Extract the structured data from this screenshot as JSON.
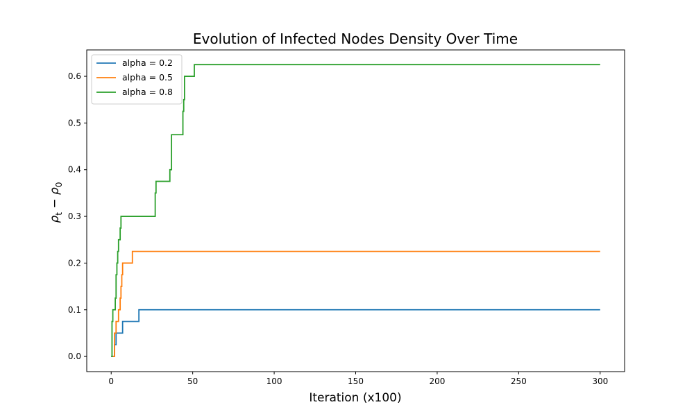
{
  "chart_data": {
    "type": "line",
    "title": "Evolution of Infected Nodes Density Over Time",
    "xlabel": "Iteration (x100)",
    "ylabel": "ρ_t − ρ_0",
    "xlim": [
      -15,
      315
    ],
    "ylim": [
      -0.0325,
      0.6565
    ],
    "xticks": [
      0,
      50,
      100,
      150,
      200,
      250,
      300
    ],
    "yticks": [
      0.0,
      0.1,
      0.2,
      0.3,
      0.4,
      0.5,
      0.6
    ],
    "grid": false,
    "legend_location": "upper-left",
    "series": [
      {
        "name": "alpha = 0.2",
        "color": "#1f77b4",
        "x": [
          0,
          2,
          2,
          3,
          3,
          7,
          7,
          17,
          17,
          300
        ],
        "y": [
          0.0,
          0.0,
          0.025,
          0.025,
          0.05,
          0.05,
          0.075,
          0.075,
          0.1,
          0.1
        ]
      },
      {
        "name": "alpha = 0.5",
        "color": "#ff7f0e",
        "x": [
          1,
          2,
          2,
          3,
          3,
          4.5,
          4.5,
          5.5,
          5.5,
          6,
          6,
          6.5,
          6.5,
          7,
          7,
          13,
          13,
          300
        ],
        "y": [
          0.0,
          0.0,
          0.05,
          0.05,
          0.075,
          0.075,
          0.1,
          0.1,
          0.125,
          0.125,
          0.15,
          0.15,
          0.175,
          0.175,
          0.2,
          0.2,
          0.225,
          0.225
        ]
      },
      {
        "name": "alpha = 0.8",
        "color": "#2ca02c",
        "x": [
          0,
          0.5,
          0.5,
          1,
          1,
          2.5,
          2.5,
          3,
          3,
          3.5,
          3.5,
          4,
          4,
          4.5,
          4.5,
          5.5,
          5.5,
          6,
          6,
          27,
          27,
          27.5,
          27.5,
          36,
          36,
          37,
          37,
          44,
          44,
          44.5,
          44.5,
          45,
          45,
          51,
          51,
          300
        ],
        "y": [
          0.0,
          0.0,
          0.075,
          0.075,
          0.1,
          0.1,
          0.125,
          0.125,
          0.175,
          0.175,
          0.2,
          0.2,
          0.225,
          0.225,
          0.25,
          0.25,
          0.275,
          0.275,
          0.3,
          0.3,
          0.35,
          0.35,
          0.375,
          0.375,
          0.4,
          0.4,
          0.475,
          0.475,
          0.525,
          0.525,
          0.55,
          0.55,
          0.6,
          0.6,
          0.625,
          0.625
        ]
      }
    ]
  }
}
